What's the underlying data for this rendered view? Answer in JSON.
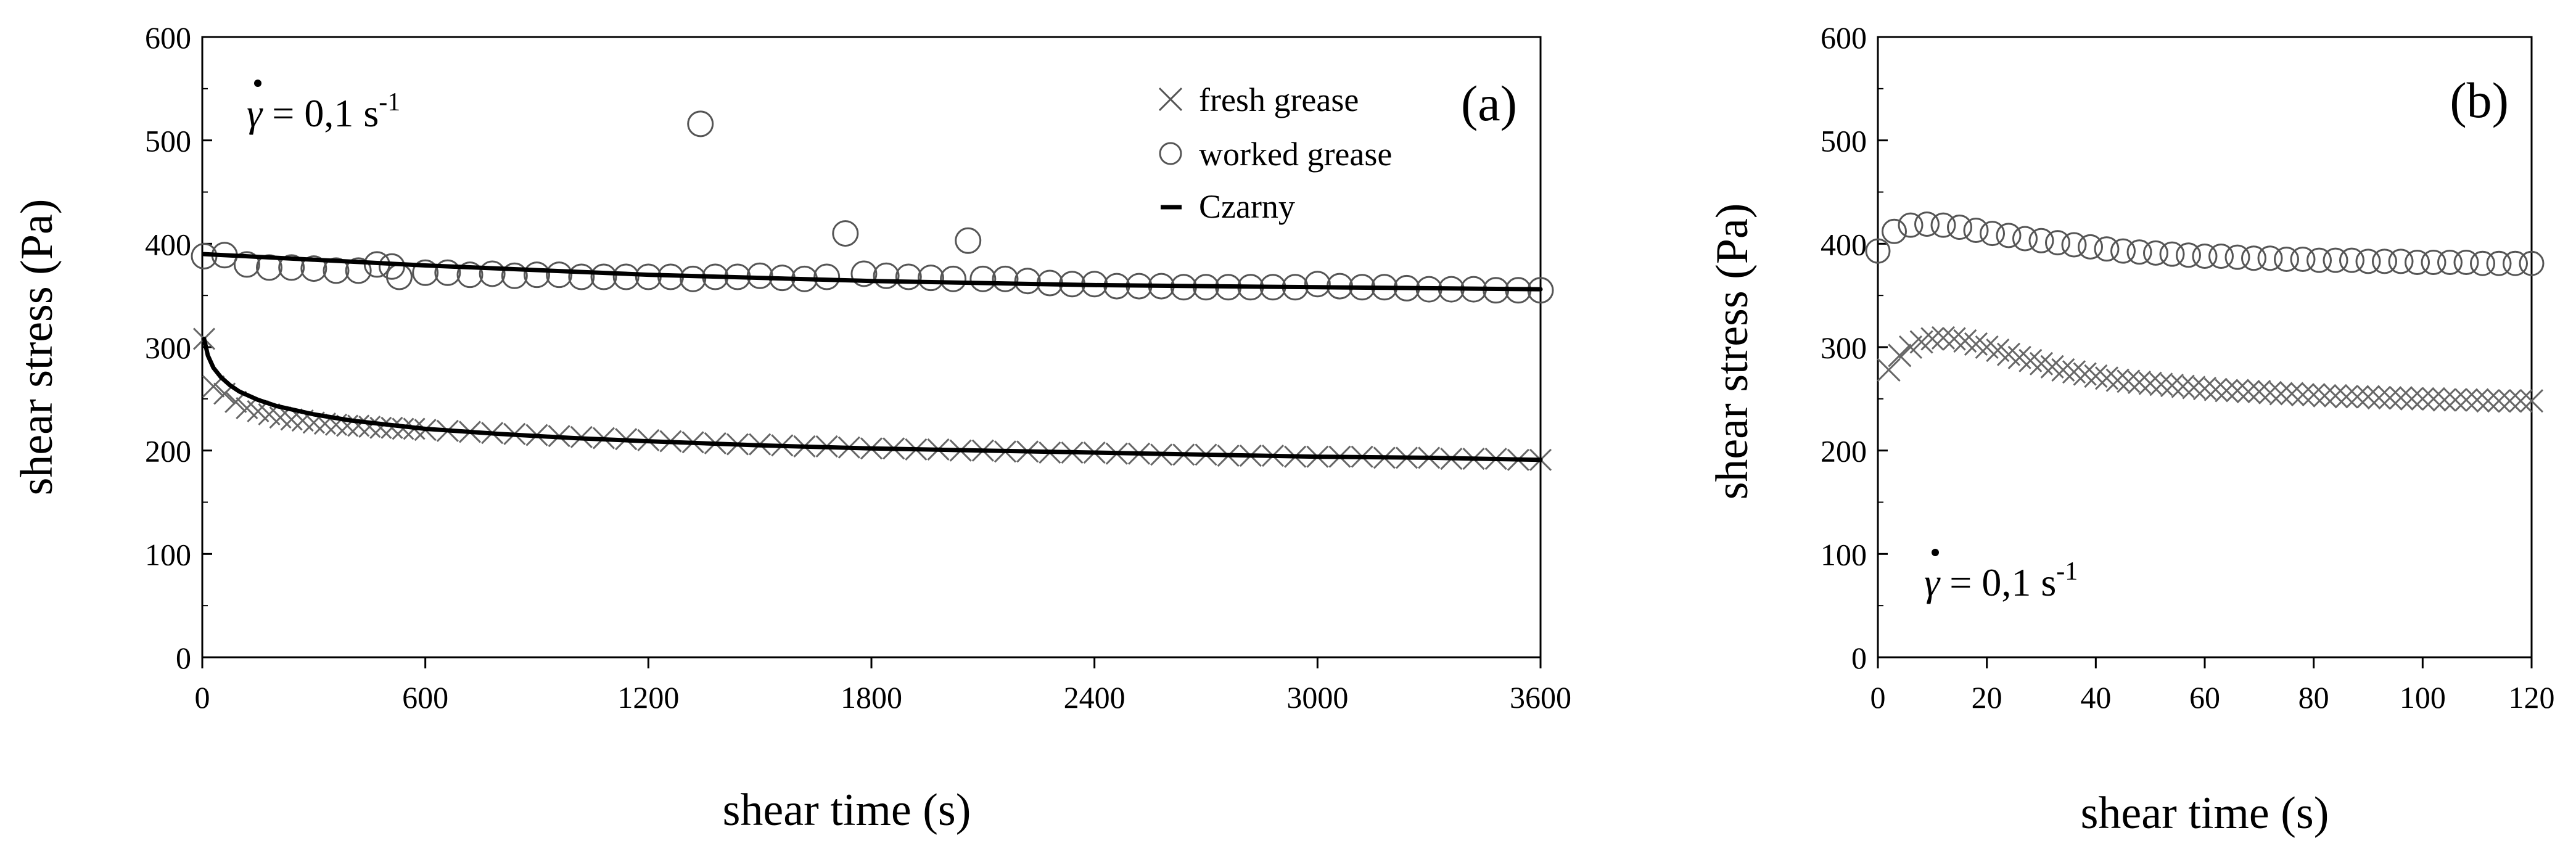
{
  "chart_data": [
    {
      "type": "scatter",
      "panel_label": "(a)",
      "annotation": {
        "prefix": "γ",
        "text": " = 0,1  s",
        "superscript": "-1"
      },
      "xlabel": "shear time (s)",
      "ylabel": "shear stress (Pa)",
      "xlim": [
        0,
        3600
      ],
      "ylim": [
        0,
        600
      ],
      "xticks": [
        0,
        600,
        1200,
        1800,
        2400,
        3000,
        3600
      ],
      "yticks": [
        0,
        100,
        200,
        300,
        400,
        500,
        600
      ],
      "grid": false,
      "legend_position": "top-right",
      "legend": [
        {
          "label": "fresh grease",
          "marker": "cross"
        },
        {
          "label": "worked grease",
          "marker": "circle"
        },
        {
          "label": "Czarny",
          "marker": "line"
        }
      ],
      "series": [
        {
          "name": "fresh grease",
          "marker": "cross",
          "x": [
            5,
            30,
            60,
            90,
            120,
            150,
            180,
            210,
            240,
            270,
            300,
            330,
            360,
            390,
            420,
            450,
            480,
            510,
            540,
            570,
            600,
            660,
            720,
            780,
            840,
            900,
            960,
            1020,
            1080,
            1140,
            1200,
            1260,
            1320,
            1380,
            1440,
            1500,
            1560,
            1620,
            1680,
            1740,
            1800,
            1860,
            1920,
            1980,
            2040,
            2100,
            2160,
            2220,
            2280,
            2340,
            2400,
            2460,
            2520,
            2580,
            2640,
            2700,
            2760,
            2820,
            2880,
            2940,
            3000,
            3060,
            3120,
            3180,
            3240,
            3300,
            3360,
            3420,
            3480,
            3540,
            3600
          ],
          "values": [
            308,
            262,
            255,
            247,
            241,
            238,
            235,
            232,
            230,
            229,
            227,
            226,
            225,
            224,
            224,
            223,
            222,
            222,
            221,
            221,
            220,
            219,
            218,
            217,
            216,
            215,
            214,
            213,
            212,
            211,
            210,
            209,
            208,
            207,
            206,
            206,
            205,
            204,
            204,
            203,
            202,
            202,
            201,
            201,
            200,
            200,
            199,
            199,
            198,
            198,
            198,
            197,
            197,
            196,
            196,
            196,
            195,
            195,
            195,
            194,
            194,
            194,
            194,
            193,
            193,
            193,
            192,
            192,
            192,
            191,
            191
          ]
        },
        {
          "name": "worked grease",
          "marker": "circle",
          "x": [
            5,
            60,
            120,
            180,
            240,
            300,
            360,
            420,
            470,
            510,
            530,
            600,
            660,
            720,
            780,
            840,
            900,
            960,
            1020,
            1080,
            1140,
            1200,
            1260,
            1320,
            1340,
            1380,
            1440,
            1500,
            1560,
            1620,
            1680,
            1730,
            1780,
            1840,
            1900,
            1960,
            2020,
            2060,
            2100,
            2160,
            2220,
            2280,
            2340,
            2400,
            2460,
            2520,
            2580,
            2640,
            2700,
            2760,
            2820,
            2880,
            2940,
            3000,
            3060,
            3120,
            3180,
            3240,
            3300,
            3360,
            3420,
            3480,
            3540,
            3600
          ],
          "values": [
            388,
            389,
            380,
            377,
            377,
            376,
            374,
            374,
            380,
            378,
            368,
            372,
            372,
            370,
            371,
            369,
            370,
            370,
            368,
            368,
            368,
            368,
            368,
            366,
            516,
            368,
            368,
            369,
            367,
            366,
            368,
            410,
            371,
            369,
            368,
            367,
            366,
            403,
            366,
            366,
            364,
            362,
            361,
            361,
            359,
            359,
            359,
            358,
            358,
            358,
            358,
            358,
            358,
            361,
            359,
            358,
            358,
            357,
            356,
            356,
            356,
            355,
            355,
            355
          ]
        },
        {
          "name": "Czarny",
          "marker": "line",
          "x": [
            5,
            600,
            1200,
            1800,
            2400,
            3000,
            3600
          ],
          "values": [
            390,
            379,
            370,
            364,
            360,
            358,
            356
          ]
        },
        {
          "name": "Czarny",
          "marker": "line",
          "x": [
            5,
            15,
            30,
            50,
            75,
            100,
            150,
            200,
            300,
            400,
            500,
            600,
            800,
            1000,
            1200,
            1500,
            1800,
            2100,
            2400,
            2700,
            3000,
            3300,
            3600
          ],
          "values": [
            308,
            292,
            280,
            271,
            263,
            257,
            249,
            243,
            235,
            229,
            225,
            221,
            216,
            212,
            209,
            205,
            202,
            200,
            198,
            196,
            194,
            193,
            191
          ]
        }
      ]
    },
    {
      "type": "scatter",
      "panel_label": "(b)",
      "annotation": {
        "prefix": "γ",
        "text": " = 0,1  s",
        "superscript": "-1"
      },
      "xlabel": "shear time (s)",
      "ylabel": "shear stress (Pa)",
      "xlim": [
        0,
        120
      ],
      "ylim": [
        0,
        600
      ],
      "xticks": [
        0,
        20,
        40,
        60,
        80,
        100,
        120
      ],
      "yticks": [
        0,
        100,
        200,
        300,
        400,
        500,
        600
      ],
      "grid": false,
      "series": [
        {
          "name": "fresh grease",
          "marker": "cross",
          "x": [
            2,
            4,
            6,
            8,
            10,
            12,
            14,
            16,
            18,
            20,
            22,
            24,
            26,
            28,
            30,
            32,
            34,
            36,
            38,
            40,
            42,
            44,
            46,
            48,
            50,
            52,
            54,
            56,
            58,
            60,
            62,
            64,
            66,
            68,
            70,
            72,
            74,
            76,
            78,
            80,
            82,
            84,
            86,
            88,
            90,
            92,
            94,
            96,
            98,
            100,
            102,
            104,
            106,
            108,
            110,
            112,
            114,
            116,
            118,
            120
          ],
          "values": [
            278,
            292,
            300,
            305,
            308,
            309,
            308,
            306,
            303,
            300,
            297,
            293,
            290,
            287,
            284,
            281,
            278,
            276,
            274,
            272,
            270,
            268,
            267,
            266,
            265,
            264,
            263,
            262,
            261,
            260,
            259,
            258,
            258,
            257,
            257,
            256,
            255,
            255,
            254,
            254,
            253,
            253,
            252,
            252,
            252,
            251,
            251,
            251,
            250,
            250,
            250,
            249,
            249,
            249,
            249,
            248,
            248,
            248,
            248,
            248
          ]
        },
        {
          "name": "worked grease",
          "marker": "circle",
          "x": [
            0,
            3,
            6,
            9,
            12,
            15,
            18,
            21,
            24,
            27,
            30,
            33,
            36,
            39,
            42,
            45,
            48,
            51,
            54,
            57,
            60,
            63,
            66,
            69,
            72,
            75,
            78,
            81,
            84,
            87,
            90,
            93,
            96,
            99,
            102,
            105,
            108,
            111,
            114,
            117,
            120
          ],
          "values": [
            393,
            412,
            418,
            419,
            418,
            416,
            413,
            410,
            408,
            405,
            403,
            401,
            399,
            397,
            395,
            393,
            392,
            391,
            390,
            389,
            388,
            388,
            387,
            386,
            386,
            385,
            385,
            384,
            384,
            384,
            383,
            383,
            383,
            382,
            382,
            382,
            382,
            381,
            381,
            381,
            381
          ]
        }
      ]
    }
  ]
}
